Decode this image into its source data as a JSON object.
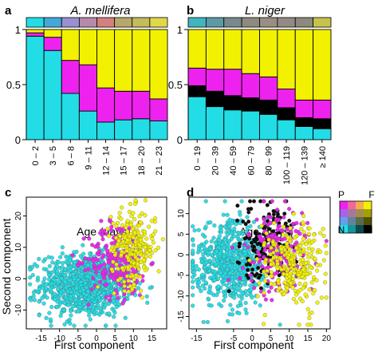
{
  "panel_letters": [
    "a",
    "b",
    "c",
    "d"
  ],
  "legend2d": {
    "corners": {
      "tl": "P",
      "tr": "F",
      "bl": "N",
      "br": "I"
    }
  },
  "colors": {
    "N": "#22dde6",
    "P": "#ee22ee",
    "I": "#000000",
    "F": "#f2f200"
  },
  "chart_data": [
    {
      "type": "bar",
      "title": "A. mellifera",
      "xlabel": "Age (days)",
      "ylabel": "",
      "ylim": [
        0,
        1
      ],
      "yticks": [
        "0",
        "0.5",
        "1"
      ],
      "stacked": true,
      "categories": [
        "0 – 2",
        "3 – 5",
        "6 – 8",
        "9 – 11",
        "12 – 14",
        "15 – 17",
        "18 – 20",
        "21 – 23"
      ],
      "series": [
        {
          "key": "N",
          "values": [
            0.94,
            0.81,
            0.42,
            0.26,
            0.16,
            0.18,
            0.19,
            0.17
          ]
        },
        {
          "key": "P",
          "values": [
            0.03,
            0.12,
            0.3,
            0.42,
            0.31,
            0.26,
            0.25,
            0.2
          ]
        },
        {
          "key": "I",
          "values": [
            0.0,
            0.0,
            0.0,
            0.0,
            0.0,
            0.0,
            0.0,
            0.0
          ]
        },
        {
          "key": "F",
          "values": [
            0.03,
            0.07,
            0.28,
            0.32,
            0.53,
            0.56,
            0.56,
            0.63
          ]
        }
      ],
      "colorbar": [
        "#22dde6",
        "#44a8d8",
        "#9a8fd0",
        "#b78aa8",
        "#d48080",
        "#b8a76a",
        "#c4bb5a",
        "#e0d84a"
      ]
    },
    {
      "type": "bar",
      "title": "L. niger",
      "xlabel": "Age (days)",
      "ylabel": "",
      "ylim": [
        0,
        1
      ],
      "yticks": [
        "0",
        "0.5",
        "1"
      ],
      "stacked": true,
      "categories": [
        "0 – 19",
        "20 – 39",
        "40 – 59",
        "60 – 79",
        "80 – 99",
        "100 – 119",
        "120 – 139",
        "≥ 140"
      ],
      "series": [
        {
          "key": "N",
          "values": [
            0.39,
            0.3,
            0.27,
            0.26,
            0.23,
            0.18,
            0.12,
            0.1
          ]
        },
        {
          "key": "I",
          "values": [
            0.1,
            0.14,
            0.13,
            0.12,
            0.13,
            0.11,
            0.08,
            0.09
          ]
        },
        {
          "key": "P",
          "values": [
            0.16,
            0.2,
            0.24,
            0.22,
            0.21,
            0.17,
            0.16,
            0.17
          ]
        },
        {
          "key": "F",
          "values": [
            0.35,
            0.36,
            0.36,
            0.4,
            0.43,
            0.54,
            0.64,
            0.64
          ]
        }
      ],
      "colorbar": [
        "#3fb6be",
        "#5e9aa4",
        "#7a8a8c",
        "#8e8a80",
        "#9a8d82",
        "#928a84",
        "#8c8a7c",
        "#c6c24a"
      ]
    },
    {
      "type": "scatter",
      "xlabel": "First component",
      "ylabel": "Second component",
      "xlim": [
        -19,
        19
      ],
      "ylim": [
        -16,
        26
      ],
      "xticks": [
        -15,
        -10,
        -5,
        0,
        5,
        10,
        15
      ],
      "yticks": [
        -10,
        0,
        10,
        20
      ],
      "groups": [
        {
          "key": "N",
          "n": 950,
          "cx": -3,
          "cy": -2,
          "sx": 6,
          "sy": 5
        },
        {
          "key": "P",
          "n": 260,
          "cx": 6,
          "cy": 6,
          "sx": 4,
          "sy": 6
        },
        {
          "key": "F",
          "n": 240,
          "cx": 10,
          "cy": 10,
          "sx": 3,
          "sy": 6
        }
      ]
    },
    {
      "type": "scatter",
      "xlabel": "First component",
      "ylabel": "",
      "xlim": [
        -17,
        21
      ],
      "ylim": [
        -18,
        14
      ],
      "xticks": [
        -15,
        -5,
        0,
        5,
        10,
        15,
        20
      ],
      "yticks": [
        -15,
        -10,
        -5,
        0,
        5,
        10
      ],
      "groups": [
        {
          "key": "N",
          "n": 650,
          "cx": -6,
          "cy": -2,
          "sx": 5,
          "sy": 5
        },
        {
          "key": "I",
          "n": 180,
          "cx": 4,
          "cy": 2,
          "sx": 4,
          "sy": 5
        },
        {
          "key": "P",
          "n": 200,
          "cx": 7,
          "cy": 1,
          "sx": 4,
          "sy": 5
        },
        {
          "key": "F",
          "n": 260,
          "cx": 11,
          "cy": -2,
          "sx": 4,
          "sy": 5
        }
      ]
    }
  ]
}
